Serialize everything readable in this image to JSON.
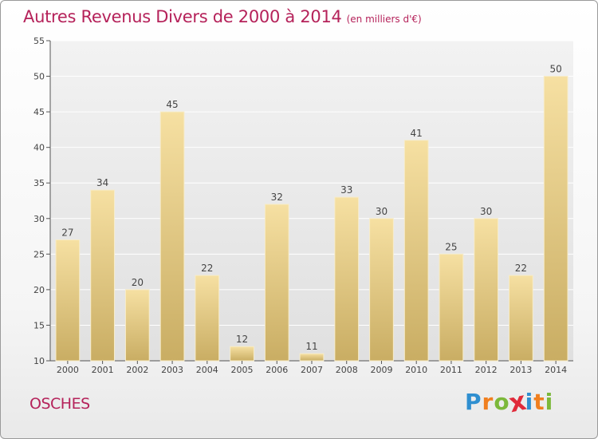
{
  "header": {
    "title": "Autres Revenus Divers de 2000 à 2014",
    "subtitle": "(en milliers d'€)"
  },
  "location": "OSCHES",
  "logo": {
    "text": "Proxiti",
    "letters": [
      {
        "ch": "P",
        "color": "#2f8fd0"
      },
      {
        "ch": "r",
        "color": "#f07f1f"
      },
      {
        "ch": "o",
        "color": "#7cb83a"
      },
      {
        "ch": "x",
        "color": "#e02a3a"
      },
      {
        "ch": "i",
        "color": "#2f8fd0"
      },
      {
        "ch": "t",
        "color": "#f07f1f"
      },
      {
        "ch": "i",
        "color": "#7cb83a"
      }
    ]
  },
  "colors": {
    "accent": "#b5225a",
    "bar_top": "#f6e0a2",
    "bar_bottom": "#c9ad63",
    "grid": "#ffffff",
    "axis": "#555555"
  },
  "chart_data": {
    "type": "bar",
    "categories": [
      "2000",
      "2001",
      "2002",
      "2003",
      "2004",
      "2005",
      "2006",
      "2007",
      "2008",
      "2009",
      "2010",
      "2011",
      "2012",
      "2013",
      "2014"
    ],
    "values": [
      27,
      34,
      20,
      45,
      22,
      12,
      32,
      11,
      33,
      30,
      41,
      25,
      30,
      22,
      50
    ],
    "ylim": [
      10,
      55
    ],
    "yticks": [
      10,
      15,
      20,
      25,
      30,
      35,
      40,
      45,
      50,
      55
    ],
    "grid": true,
    "data_labels": true
  }
}
